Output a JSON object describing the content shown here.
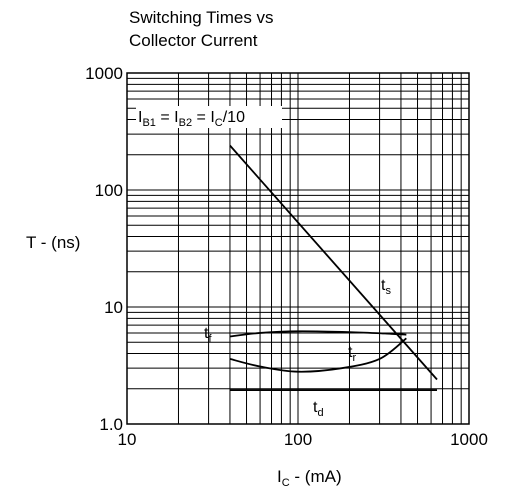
{
  "chart_data": {
    "type": "line",
    "title": "Switching Times vs Collector Current",
    "title_lines": [
      "Switching Times vs",
      "Collector Current"
    ],
    "xlabel": {
      "main": "I",
      "sub": "C",
      "rest": " - (mA)"
    },
    "ylabel": "T - (ns)",
    "xscale": "log",
    "yscale": "log",
    "xlim": [
      10,
      1000
    ],
    "ylim": [
      1,
      1000
    ],
    "xticks": [
      "10",
      "100",
      "1000"
    ],
    "yticks": [
      "1.0",
      "10",
      "100",
      "1000"
    ],
    "grid": true,
    "annotation": {
      "parts": [
        {
          "t": "I"
        },
        {
          "t": "B1",
          "sub": true
        },
        {
          "t": " = I"
        },
        {
          "t": "B2",
          "sub": true
        },
        {
          "t": " = I"
        },
        {
          "t": "C",
          "sub": true
        },
        {
          "t": "/10"
        }
      ]
    },
    "series": [
      {
        "label_main": "t",
        "label_sub": "s",
        "x": [
          40,
          650
        ],
        "y": [
          240,
          2.4
        ]
      },
      {
        "label_main": "t",
        "label_sub": "f",
        "x": [
          40,
          60,
          100,
          200,
          350,
          430
        ],
        "y": [
          5.6,
          6.0,
          6.2,
          6.1,
          5.9,
          5.8
        ]
      },
      {
        "label_main": "t",
        "label_sub": "r",
        "x": [
          40,
          60,
          100,
          180,
          300,
          430
        ],
        "y": [
          3.6,
          3.1,
          2.8,
          3.0,
          3.6,
          5.4
        ]
      },
      {
        "label_main": "t",
        "label_sub": "d",
        "x": [
          40,
          100,
          300,
          650
        ],
        "y": [
          1.95,
          1.95,
          1.95,
          1.95
        ]
      }
    ]
  }
}
